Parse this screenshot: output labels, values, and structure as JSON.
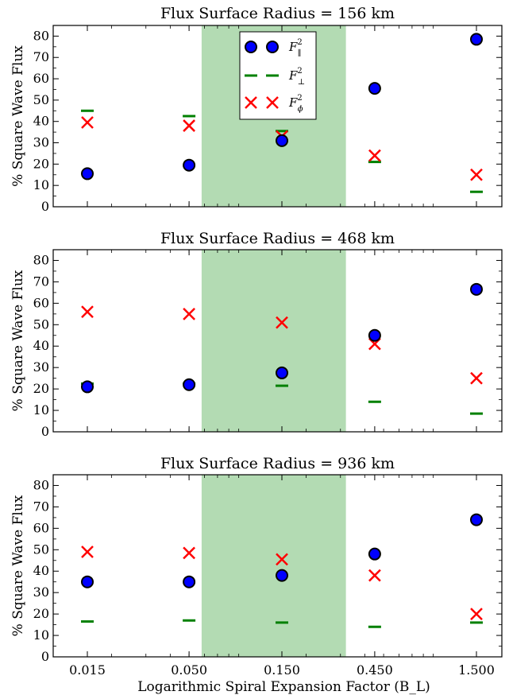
{
  "chart_data": [
    {
      "type": "scatter",
      "title": "Flux Surface Radius = 156 km",
      "ylabel": "% Square Wave Flux",
      "xlabel": "",
      "x_scale": "log",
      "x_ticks": [
        0.015,
        0.05,
        0.15,
        0.45,
        1.5
      ],
      "x_tick_labels": [
        "0.015",
        "0.050",
        "0.150",
        "0.450",
        "1.500"
      ],
      "ylim": [
        0,
        85
      ],
      "y_ticks": [
        0,
        10,
        20,
        30,
        40,
        50,
        60,
        70,
        80
      ],
      "shaded_band": {
        "x_start": 0.058,
        "x_end": 0.32,
        "color": "#b3dbb3"
      },
      "legend": {
        "placement": "top-center"
      },
      "series": [
        {
          "name": "F_parallel^2",
          "marker": "circle",
          "color": "#0000ff",
          "x": [
            0.015,
            0.05,
            0.15,
            0.45,
            1.5
          ],
          "values": [
            15.5,
            19.5,
            31,
            55.5,
            78.5
          ]
        },
        {
          "name": "F_perp^2",
          "marker": "dash",
          "color": "#008000",
          "x": [
            0.015,
            0.05,
            0.15,
            0.45,
            1.5
          ],
          "values": [
            45,
            42.5,
            35.5,
            21,
            7
          ]
        },
        {
          "name": "F_phi^2",
          "marker": "x",
          "color": "#ff0000",
          "x": [
            0.015,
            0.05,
            0.15,
            0.45,
            1.5
          ],
          "values": [
            39.5,
            38,
            33,
            24,
            15
          ]
        }
      ]
    },
    {
      "type": "scatter",
      "title": "Flux Surface Radius = 468 km",
      "ylabel": "% Square Wave Flux",
      "xlabel": "",
      "x_scale": "log",
      "x_ticks": [
        0.015,
        0.05,
        0.15,
        0.45,
        1.5
      ],
      "x_tick_labels": [
        "0.015",
        "0.050",
        "0.150",
        "0.450",
        "1.500"
      ],
      "ylim": [
        0,
        85
      ],
      "y_ticks": [
        0,
        10,
        20,
        30,
        40,
        50,
        60,
        70,
        80
      ],
      "shaded_band": {
        "x_start": 0.058,
        "x_end": 0.32,
        "color": "#b3dbb3"
      },
      "series": [
        {
          "name": "F_parallel^2",
          "marker": "circle",
          "color": "#0000ff",
          "x": [
            0.015,
            0.05,
            0.15,
            0.45,
            1.5
          ],
          "values": [
            21,
            22,
            27.5,
            45,
            66.5
          ]
        },
        {
          "name": "F_perp^2",
          "marker": "dash",
          "color": "#008000",
          "x": [
            0.015,
            0.05,
            0.15,
            0.45,
            1.5
          ],
          "values": [
            22.5,
            22.5,
            21.5,
            14,
            8.5
          ]
        },
        {
          "name": "F_phi^2",
          "marker": "x",
          "color": "#ff0000",
          "x": [
            0.015,
            0.05,
            0.15,
            0.45,
            1.5
          ],
          "values": [
            56,
            55,
            51,
            41,
            25
          ]
        }
      ]
    },
    {
      "type": "scatter",
      "title": "Flux Surface Radius = 936 km",
      "ylabel": "% Square Wave Flux",
      "xlabel": "Logarithmic Spiral Expansion Factor (B_L)",
      "x_scale": "log",
      "x_ticks": [
        0.015,
        0.05,
        0.15,
        0.45,
        1.5
      ],
      "x_tick_labels": [
        "0.015",
        "0.050",
        "0.150",
        "0.450",
        "1.500"
      ],
      "ylim": [
        0,
        85
      ],
      "y_ticks": [
        0,
        10,
        20,
        30,
        40,
        50,
        60,
        70,
        80
      ],
      "shaded_band": {
        "x_start": 0.058,
        "x_end": 0.32,
        "color": "#b3dbb3"
      },
      "series": [
        {
          "name": "F_parallel^2",
          "marker": "circle",
          "color": "#0000ff",
          "x": [
            0.015,
            0.05,
            0.15,
            0.45,
            1.5
          ],
          "values": [
            35,
            35,
            38,
            48,
            64
          ]
        },
        {
          "name": "F_perp^2",
          "marker": "dash",
          "color": "#008000",
          "x": [
            0.015,
            0.05,
            0.15,
            0.45,
            1.5
          ],
          "values": [
            16.5,
            17,
            16,
            14,
            16
          ]
        },
        {
          "name": "F_phi^2",
          "marker": "x",
          "color": "#ff0000",
          "x": [
            0.015,
            0.05,
            0.15,
            0.45,
            1.5
          ],
          "values": [
            49,
            48.5,
            45.5,
            38,
            20
          ]
        }
      ]
    }
  ]
}
